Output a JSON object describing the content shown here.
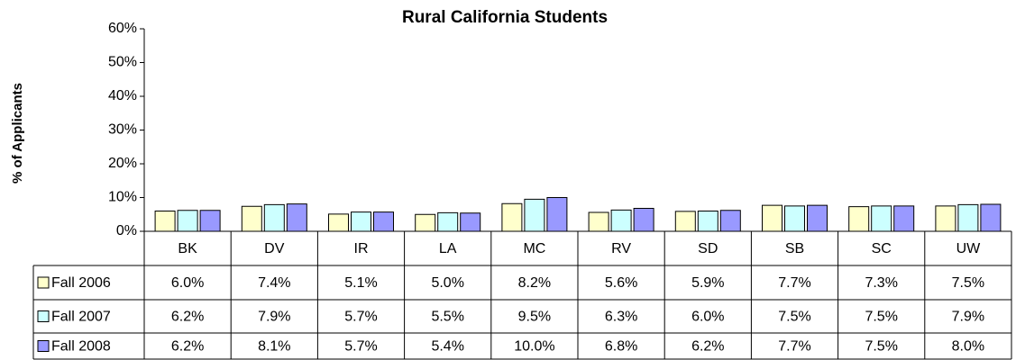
{
  "chart_data": {
    "type": "bar",
    "title": "Rural California Students",
    "y_label": "% of Applicants",
    "categories": [
      "BK",
      "DV",
      "IR",
      "LA",
      "MC",
      "RV",
      "SD",
      "SB",
      "SC",
      "UW"
    ],
    "series": [
      {
        "name": "Fall 2006",
        "color": "#ffffcc",
        "values": [
          6.0,
          7.4,
          5.1,
          5.0,
          8.2,
          5.6,
          5.9,
          7.7,
          7.3,
          7.5
        ],
        "value_labels": [
          "6.0%",
          "7.4%",
          "5.1%",
          "5.0%",
          "8.2%",
          "5.6%",
          "5.9%",
          "7.7%",
          "7.3%",
          "7.5%"
        ]
      },
      {
        "name": "Fall 2007",
        "color": "#ccffff",
        "values": [
          6.2,
          7.9,
          5.7,
          5.5,
          9.5,
          6.3,
          6.0,
          7.5,
          7.5,
          7.9
        ],
        "value_labels": [
          "6.2%",
          "7.9%",
          "5.7%",
          "5.5%",
          "9.5%",
          "6.3%",
          "6.0%",
          "7.5%",
          "7.5%",
          "7.9%"
        ]
      },
      {
        "name": "Fall 2008",
        "color": "#9999ff",
        "values": [
          6.2,
          8.1,
          5.7,
          5.4,
          10.0,
          6.8,
          6.2,
          7.7,
          7.5,
          8.0
        ],
        "value_labels": [
          "6.2%",
          "8.1%",
          "5.7%",
          "5.4%",
          "10.0%",
          "6.8%",
          "6.2%",
          "7.7%",
          "7.5%",
          "8.0%"
        ]
      }
    ],
    "ylim": [
      0,
      60
    ],
    "yticks": [
      {
        "value": 0,
        "label": "0%"
      },
      {
        "value": 10,
        "label": "10%"
      },
      {
        "value": 20,
        "label": "20%"
      },
      {
        "value": 30,
        "label": "30%"
      },
      {
        "value": 40,
        "label": "40%"
      },
      {
        "value": 50,
        "label": "50%"
      },
      {
        "value": 60,
        "label": "60%"
      }
    ]
  }
}
